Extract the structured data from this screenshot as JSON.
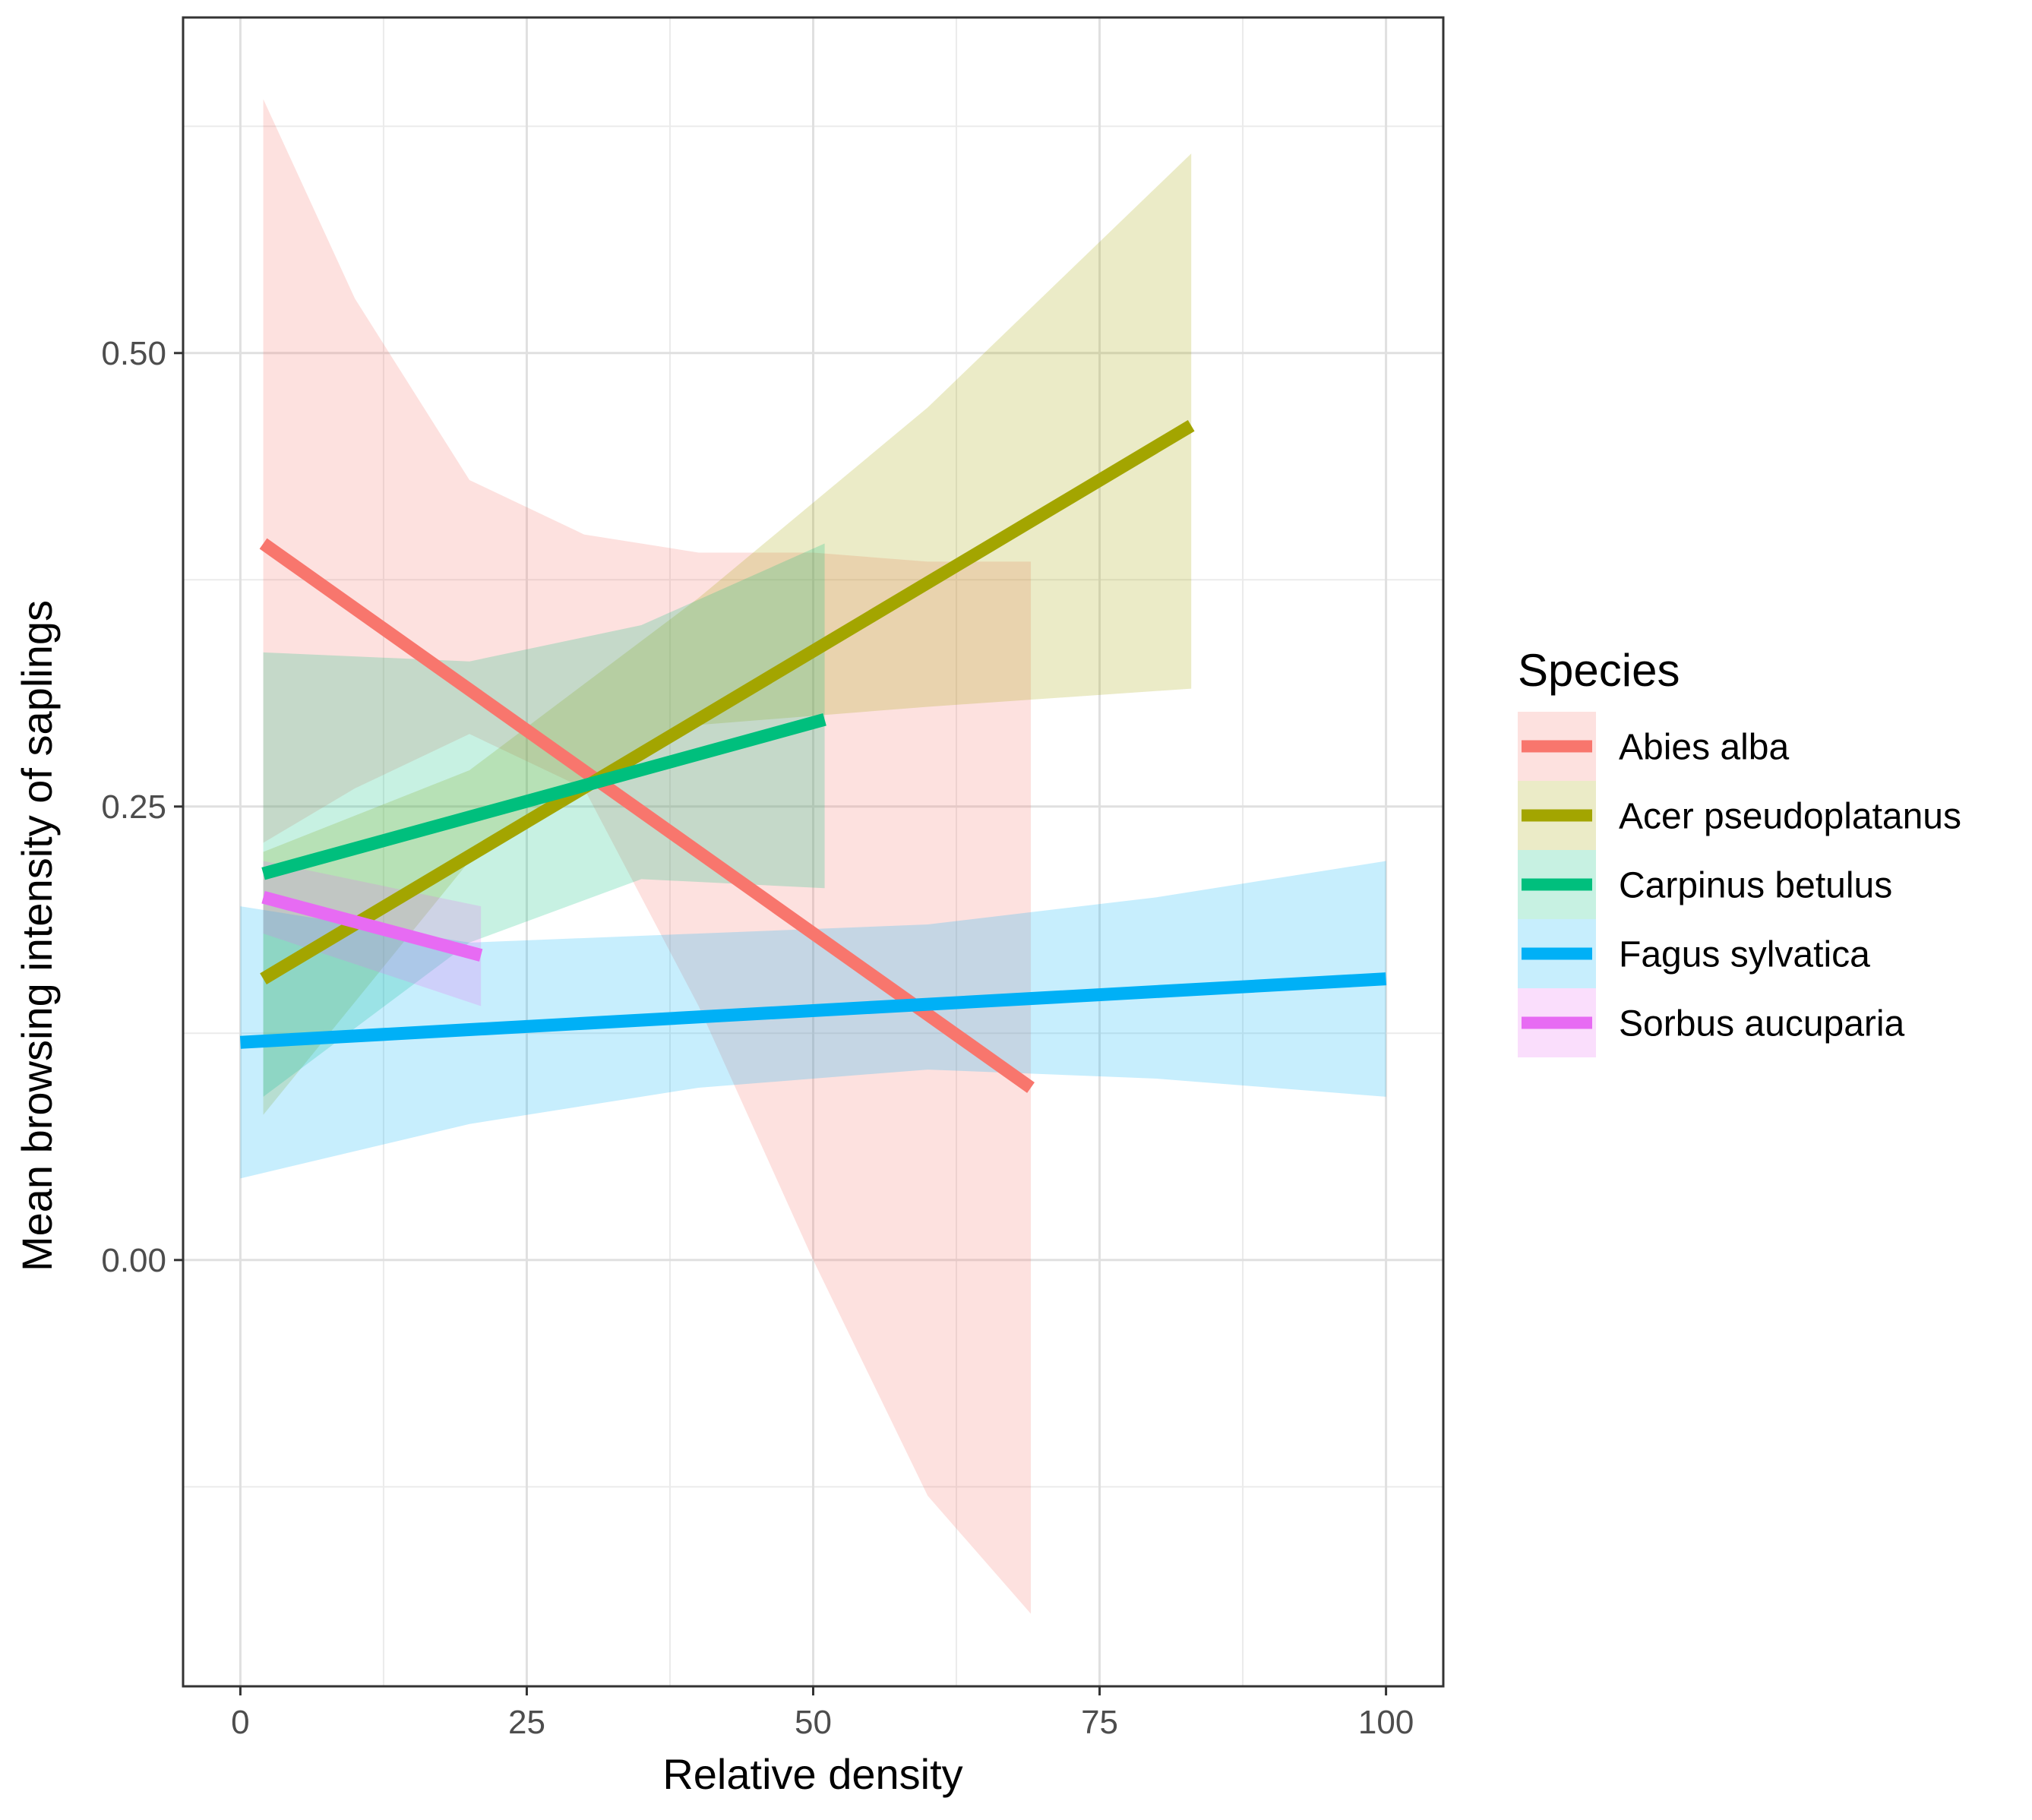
{
  "chart_data": {
    "type": "line",
    "title": "",
    "xlabel": "Relative density",
    "ylabel": "Mean browsing intensity of saplings",
    "xlim": [
      -5,
      105
    ],
    "ylim": [
      -0.235,
      0.685
    ],
    "x_ticks": [
      {
        "value": 0,
        "label": "0"
      },
      {
        "value": 25,
        "label": "25"
      },
      {
        "value": 50,
        "label": "50"
      },
      {
        "value": 75,
        "label": "75"
      },
      {
        "value": 100,
        "label": "100"
      }
    ],
    "y_ticks": [
      {
        "value": 0.0,
        "label": "0.00"
      },
      {
        "value": 0.25,
        "label": "0.25"
      },
      {
        "value": 0.5,
        "label": "0.50"
      }
    ],
    "x_minor_ticks": [
      12.5,
      37.5,
      62.5,
      87.5
    ],
    "y_minor_ticks": [
      -0.125,
      0.125,
      0.375,
      0.625
    ],
    "grid": true,
    "legend_title": "Species",
    "legend_position": "right",
    "series": [
      {
        "name": "Abies alba",
        "color": "#F8766D",
        "x": [
          2,
          69
        ],
        "y": [
          0.395,
          0.095
        ],
        "ribbon": {
          "x": [
            2,
            10,
            20,
            30,
            40,
            50,
            60,
            69
          ],
          "lower": [
            0.23,
            0.26,
            0.29,
            0.26,
            0.14,
            0.0,
            -0.13,
            -0.195
          ],
          "upper": [
            0.64,
            0.53,
            0.43,
            0.4,
            0.39,
            0.39,
            0.385,
            0.385
          ]
        }
      },
      {
        "name": "Acer pseudoplatanus",
        "color": "#A3A500",
        "x": [
          2,
          83
        ],
        "y": [
          0.155,
          0.46
        ],
        "ribbon": {
          "x": [
            2,
            20,
            40,
            60,
            83
          ],
          "lower": [
            0.08,
            0.22,
            0.295,
            0.305,
            0.315
          ],
          "upper": [
            0.225,
            0.27,
            0.365,
            0.47,
            0.61
          ]
        }
      },
      {
        "name": "Carpinus betulus",
        "color": "#00BF7D",
        "x": [
          2,
          51
        ],
        "y": [
          0.213,
          0.298
        ],
        "ribbon": {
          "x": [
            2,
            20,
            35,
            51
          ],
          "lower": [
            0.09,
            0.175,
            0.21,
            0.205
          ],
          "upper": [
            0.335,
            0.33,
            0.35,
            0.395
          ]
        }
      },
      {
        "name": "Fagus sylvatica",
        "color": "#00B0F6",
        "x": [
          0,
          100
        ],
        "y": [
          0.12,
          0.155
        ],
        "ribbon": {
          "x": [
            0,
            20,
            40,
            60,
            80,
            100
          ],
          "lower": [
            0.045,
            0.075,
            0.095,
            0.105,
            0.1,
            0.09
          ],
          "upper": [
            0.195,
            0.175,
            0.18,
            0.185,
            0.2,
            0.22
          ]
        }
      },
      {
        "name": "Sorbus aucuparia",
        "color": "#E76BF3",
        "x": [
          2,
          21
        ],
        "y": [
          0.2,
          0.168
        ],
        "ribbon": {
          "x": [
            2,
            21
          ],
          "lower": [
            0.18,
            0.14
          ],
          "upper": [
            0.22,
            0.195
          ]
        }
      }
    ]
  }
}
